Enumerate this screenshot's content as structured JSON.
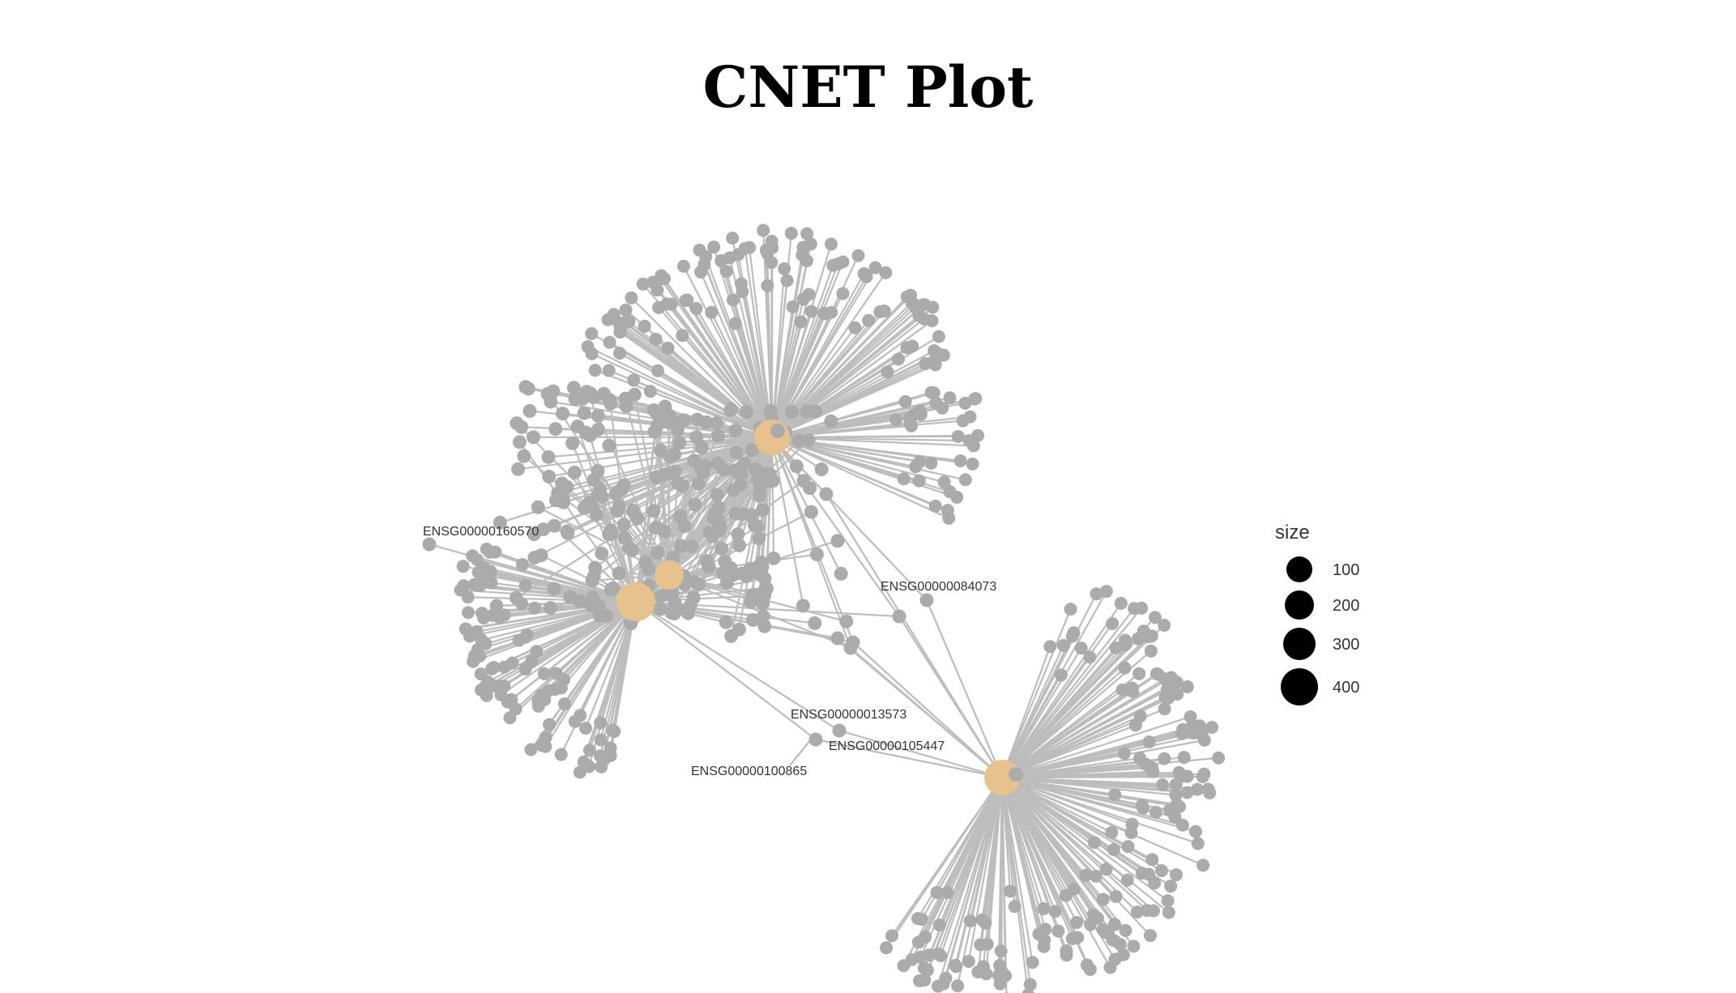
{
  "title": "CNET Plot",
  "colors": {
    "gene_node": "#ababab",
    "edge": "#bdbdbd",
    "category_node": "#e8c28d",
    "legend_key": "#000000",
    "label_text": "#333333"
  },
  "gene_labels": [
    {
      "id": "g160570",
      "text": "ENSG00000160570"
    },
    {
      "id": "g084073",
      "text": "ENSG00000084073"
    },
    {
      "id": "g013573",
      "text": "ENSG00000013573"
    },
    {
      "id": "g105447",
      "text": "ENSG00000105447"
    },
    {
      "id": "g100865",
      "text": "ENSG00000100865"
    }
  ],
  "legend": {
    "title": "size",
    "items": [
      {
        "label": "100",
        "value": 100
      },
      {
        "label": "200",
        "value": 200
      },
      {
        "label": "300",
        "value": 300
      },
      {
        "label": "400",
        "value": 400
      }
    ]
  }
}
